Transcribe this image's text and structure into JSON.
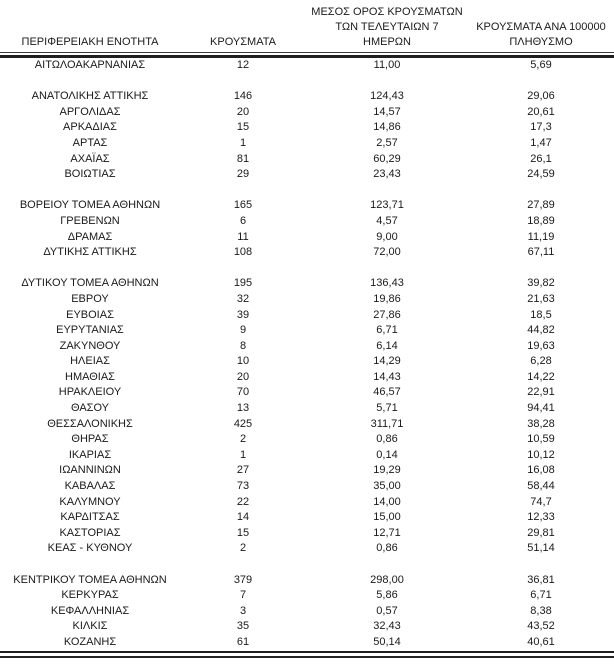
{
  "table": {
    "headers": {
      "region": "ΠΕΡΙΦΕΡΕΙΑΚΗ ΕΝΟΤΗΤΑ",
      "cases": "ΚΡΟΥΣΜΑΤΑ",
      "avg7_line1": "ΜΕΣΟΣ ΟΡΟΣ ΚΡΟΥΣΜΑΤΩΝ",
      "avg7_line2": "ΤΩΝ ΤΕΛΕΥΤΑΙΩΝ 7",
      "avg7_line3": "ΗΜΕΡΩΝ",
      "per100k_line1": "ΚΡΟΥΣΜΑΤΑ ΑΝΑ 100000",
      "per100k_line2": "ΠΛΗΘΥΣΜΟ"
    },
    "groups": [
      {
        "rows": [
          {
            "region": "ΑΙΤΩΛΟΑΚΑΡΝΑΝΙΑΣ",
            "cases": "12",
            "avg7": "11,00",
            "per100k": "5,69"
          }
        ]
      },
      {
        "rows": [
          {
            "region": "ΑΝΑΤΟΛΙΚΗΣ ΑΤΤΙΚΗΣ",
            "cases": "146",
            "avg7": "124,43",
            "per100k": "29,06"
          },
          {
            "region": "ΑΡΓΟΛΙΔΑΣ",
            "cases": "20",
            "avg7": "14,57",
            "per100k": "20,61"
          },
          {
            "region": "ΑΡΚΑΔΙΑΣ",
            "cases": "15",
            "avg7": "14,86",
            "per100k": "17,3"
          },
          {
            "region": "ΑΡΤΑΣ",
            "cases": "1",
            "avg7": "2,57",
            "per100k": "1,47"
          },
          {
            "region": "ΑΧΑΪΑΣ",
            "cases": "81",
            "avg7": "60,29",
            "per100k": "26,1"
          },
          {
            "region": "ΒΟΙΩΤΙΑΣ",
            "cases": "29",
            "avg7": "23,43",
            "per100k": "24,59"
          }
        ]
      },
      {
        "rows": [
          {
            "region": "ΒΟΡΕΙΟΥ ΤΟΜΕΑ ΑΘΗΝΩΝ",
            "cases": "165",
            "avg7": "123,71",
            "per100k": "27,89"
          },
          {
            "region": "ΓΡΕΒΕΝΩΝ",
            "cases": "6",
            "avg7": "4,57",
            "per100k": "18,89"
          },
          {
            "region": "ΔΡΑΜΑΣ",
            "cases": "11",
            "avg7": "9,00",
            "per100k": "11,19"
          },
          {
            "region": "ΔΥΤΙΚΗΣ ΑΤΤΙΚΗΣ",
            "cases": "108",
            "avg7": "72,00",
            "per100k": "67,11"
          }
        ]
      },
      {
        "rows": [
          {
            "region": "ΔΥΤΙΚΟΥ ΤΟΜΕΑ ΑΘΗΝΩΝ",
            "cases": "195",
            "avg7": "136,43",
            "per100k": "39,82"
          },
          {
            "region": "ΕΒΡΟΥ",
            "cases": "32",
            "avg7": "19,86",
            "per100k": "21,63"
          },
          {
            "region": "ΕΥΒΟΙΑΣ",
            "cases": "39",
            "avg7": "27,86",
            "per100k": "18,5"
          },
          {
            "region": "ΕΥΡΥΤΑΝΙΑΣ",
            "cases": "9",
            "avg7": "6,71",
            "per100k": "44,82"
          },
          {
            "region": "ΖΑΚΥΝΘΟΥ",
            "cases": "8",
            "avg7": "6,14",
            "per100k": "19,63"
          },
          {
            "region": "ΗΛΕΙΑΣ",
            "cases": "10",
            "avg7": "14,29",
            "per100k": "6,28"
          },
          {
            "region": "ΗΜΑΘΙΑΣ",
            "cases": "20",
            "avg7": "14,43",
            "per100k": "14,22"
          },
          {
            "region": "ΗΡΑΚΛΕΙΟΥ",
            "cases": "70",
            "avg7": "46,57",
            "per100k": "22,91"
          },
          {
            "region": "ΘΑΣΟΥ",
            "cases": "13",
            "avg7": "5,71",
            "per100k": "94,41"
          },
          {
            "region": "ΘΕΣΣΑΛΟΝΙΚΗΣ",
            "cases": "425",
            "avg7": "311,71",
            "per100k": "38,28"
          },
          {
            "region": "ΘΗΡΑΣ",
            "cases": "2",
            "avg7": "0,86",
            "per100k": "10,59"
          },
          {
            "region": "ΙΚΑΡΙΑΣ",
            "cases": "1",
            "avg7": "0,14",
            "per100k": "10,12"
          },
          {
            "region": "ΙΩΑΝΝΙΝΩΝ",
            "cases": "27",
            "avg7": "19,29",
            "per100k": "16,08"
          },
          {
            "region": "ΚΑΒΑΛΑΣ",
            "cases": "73",
            "avg7": "35,00",
            "per100k": "58,44"
          },
          {
            "region": "ΚΑΛΥΜΝΟΥ",
            "cases": "22",
            "avg7": "14,00",
            "per100k": "74,7"
          },
          {
            "region": "ΚΑΡΔΙΤΣΑΣ",
            "cases": "14",
            "avg7": "15,00",
            "per100k": "12,33"
          },
          {
            "region": "ΚΑΣΤΟΡΙΑΣ",
            "cases": "15",
            "avg7": "12,71",
            "per100k": "29,81"
          },
          {
            "region": "ΚΕΑΣ - ΚΥΘΝΟΥ",
            "cases": "2",
            "avg7": "0,86",
            "per100k": "51,14"
          }
        ]
      },
      {
        "rows": [
          {
            "region": "ΚΕΝΤΡΙΚΟΥ ΤΟΜΕΑ ΑΘΗΝΩΝ",
            "cases": "379",
            "avg7": "298,00",
            "per100k": "36,81"
          },
          {
            "region": "ΚΕΡΚΥΡΑΣ",
            "cases": "7",
            "avg7": "5,86",
            "per100k": "6,71"
          },
          {
            "region": "ΚΕΦΑΛΛΗΝΙΑΣ",
            "cases": "3",
            "avg7": "0,57",
            "per100k": "8,38"
          },
          {
            "region": "ΚΙΛΚΙΣ",
            "cases": "35",
            "avg7": "32,43",
            "per100k": "43,52"
          },
          {
            "region": "ΚΟΖΑΝΗΣ",
            "cases": "61",
            "avg7": "50,14",
            "per100k": "40,61"
          }
        ]
      }
    ]
  }
}
